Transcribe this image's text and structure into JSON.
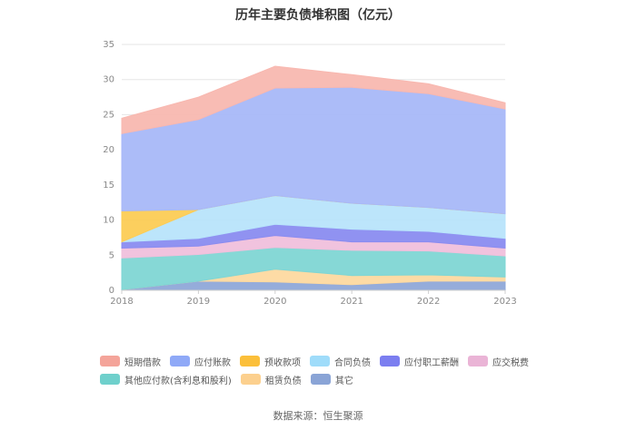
{
  "chart_data": {
    "type": "area",
    "stacked": true,
    "title": "历年主要负债堆积图（亿元）",
    "categories": [
      "2018",
      "2019",
      "2020",
      "2021",
      "2022",
      "2023"
    ],
    "ylim": [
      0,
      35
    ],
    "yticks": [
      0,
      5,
      10,
      15,
      20,
      25,
      30,
      35
    ],
    "grid": true,
    "legend_position": "bottom",
    "series": [
      {
        "name": "其它",
        "color": "#8fa8d8",
        "values": [
          0.1,
          1.3,
          1.2,
          0.8,
          1.3,
          1.3
        ]
      },
      {
        "name": "租赁负债",
        "color": "#fdd9a0",
        "values": [
          0.0,
          0.0,
          1.8,
          1.3,
          0.9,
          0.6
        ]
      },
      {
        "name": "其他应付款(含利息和股利)",
        "color": "#7fd6d4",
        "values": [
          4.5,
          3.8,
          3.1,
          3.6,
          3.4,
          3.0
        ]
      },
      {
        "name": "应交税费",
        "color": "#f0c0dc",
        "values": [
          1.4,
          1.2,
          1.7,
          1.2,
          1.3,
          1.1
        ]
      },
      {
        "name": "应付职工薪酬",
        "color": "#8a8cf0",
        "values": [
          0.9,
          1.1,
          1.6,
          1.8,
          1.5,
          1.4
        ]
      },
      {
        "name": "合同负债",
        "color": "#b8e4fb",
        "values": [
          0.0,
          4.1,
          4.1,
          3.7,
          3.4,
          3.5
        ]
      },
      {
        "name": "预收款项",
        "color": "#fccc55",
        "values": [
          4.4,
          0.0,
          0.0,
          0.0,
          0.0,
          0.0
        ]
      },
      {
        "name": "应付账款",
        "color": "#a8b8f8",
        "values": [
          11.0,
          12.8,
          15.3,
          16.5,
          16.2,
          14.9
        ]
      },
      {
        "name": "短期借款",
        "color": "#f8b8b0",
        "values": [
          2.2,
          3.2,
          3.1,
          1.8,
          1.4,
          0.9
        ]
      }
    ]
  },
  "legend": {
    "row1": [
      {
        "label": "短期借款",
        "color": "#f4a49a"
      },
      {
        "label": "应付账款",
        "color": "#8fa9f7"
      },
      {
        "label": "预收款项",
        "color": "#fbbf3a"
      },
      {
        "label": "合同负债",
        "color": "#9fdcfa"
      },
      {
        "label": "应付职工薪酬",
        "color": "#7b7ef0"
      },
      {
        "label": "应交税费",
        "color": "#eab4d6"
      }
    ],
    "row2": [
      {
        "label": "其他应付款(含利息和股利)",
        "color": "#6fd0cc"
      },
      {
        "label": "租赁负债",
        "color": "#fcd08e"
      },
      {
        "label": "其它",
        "color": "#8aa4d6"
      }
    ]
  },
  "source": "数据来源：恒生聚源"
}
